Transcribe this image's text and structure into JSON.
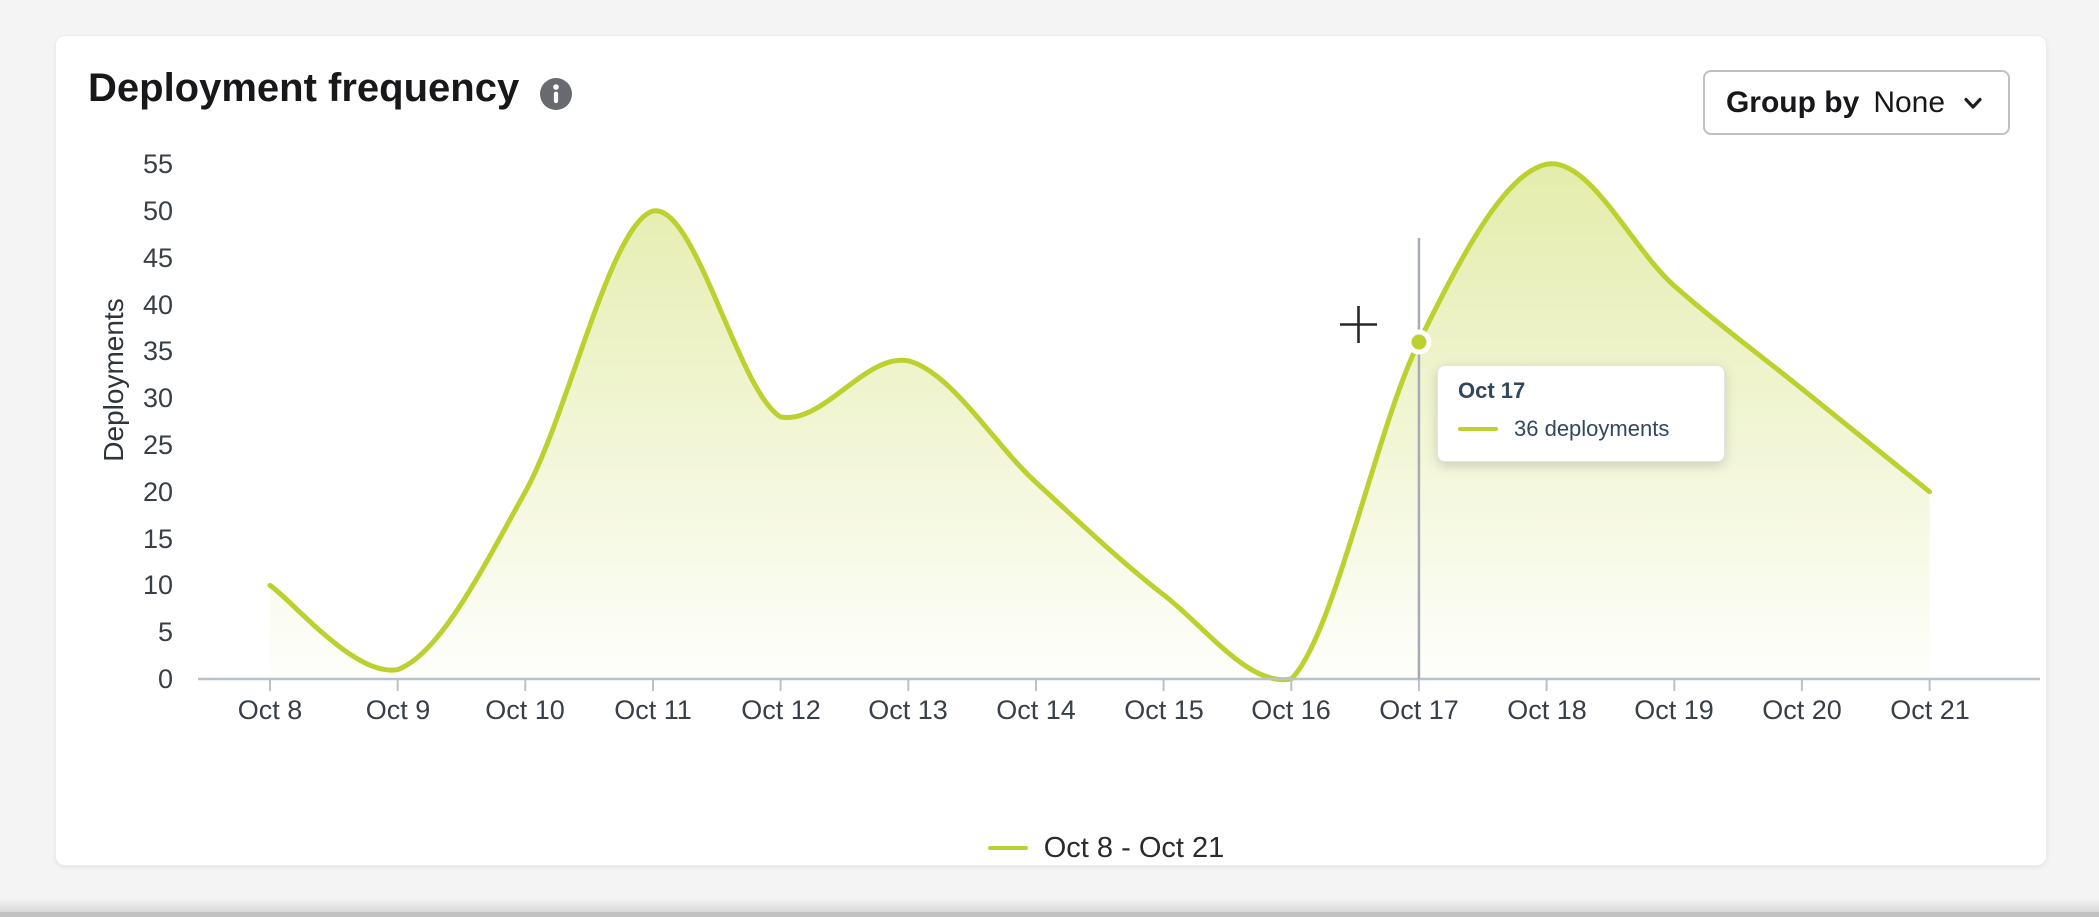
{
  "card": {
    "title": "Deployment frequency",
    "group_by": {
      "label": "Group by",
      "value": "None"
    }
  },
  "chart_data": {
    "type": "area",
    "title": "Deployment frequency",
    "categories": [
      "Oct 8",
      "Oct 9",
      "Oct 10",
      "Oct 11",
      "Oct 12",
      "Oct 13",
      "Oct 14",
      "Oct 15",
      "Oct 16",
      "Oct 17",
      "Oct 18",
      "Oct 19",
      "Oct 20",
      "Oct 21"
    ],
    "series": [
      {
        "name": "Oct 8 - Oct 21",
        "values": [
          10,
          1,
          20,
          50,
          28,
          34,
          21,
          9,
          0,
          36,
          55,
          42,
          31,
          20
        ]
      }
    ],
    "xlabel": "",
    "ylabel": "Deployments",
    "ylim": [
      0,
      55
    ],
    "y_ticks": [
      0,
      5,
      10,
      15,
      20,
      25,
      30,
      35,
      40,
      45,
      50,
      55
    ],
    "grid": false,
    "legend_position": "bottom",
    "line_color": "#bcd12f",
    "area_gradient_top": "rgba(188,209,47,0.40)",
    "area_gradient_bottom": "rgba(188,209,47,0.02)",
    "axis_color": "#b9c2ca"
  },
  "hover": {
    "category_index": 9,
    "category": "Oct 17",
    "value": 36,
    "tracker_color": "#a5abb3"
  },
  "tooltip": {
    "title": "Oct 17",
    "value_label": "36 deployments"
  },
  "legend": {
    "label": "Oct 8 - Oct 21"
  },
  "colors": {
    "accent": "#bcd12f",
    "tooltip_text": "#31475e",
    "info_icon": "#686a70"
  }
}
